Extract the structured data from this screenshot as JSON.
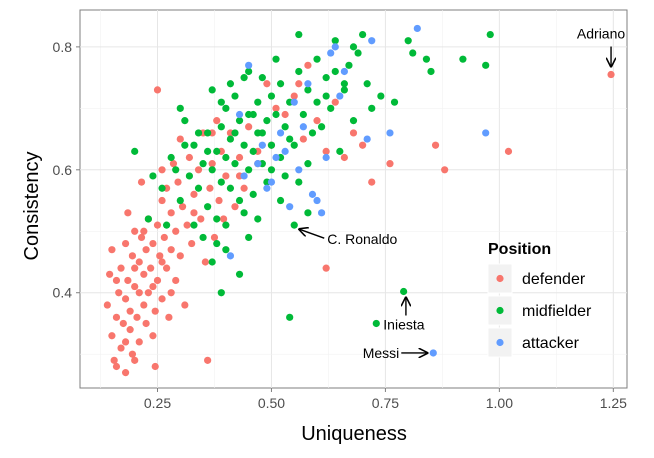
{
  "chart_data": {
    "type": "scatter",
    "title": "",
    "xlabel": "Uniqueness",
    "ylabel": "Consistency",
    "xlim": [
      0.08,
      1.28
    ],
    "ylim": [
      0.245,
      0.86
    ],
    "xticks": [
      0.25,
      0.5,
      0.75,
      1.0,
      1.25
    ],
    "xtick_labels": [
      "0.25",
      "0.50",
      "0.75",
      "1.00",
      "1.25"
    ],
    "yticks": [
      0.4,
      0.6,
      0.8
    ],
    "ytick_labels": [
      "0.4",
      "0.6",
      "0.8"
    ],
    "grid": true,
    "legend": {
      "title": "Position",
      "placement": "bottom-right",
      "entries": [
        {
          "label": "defender",
          "color": "#F8766D"
        },
        {
          "label": "midfielder",
          "color": "#00BA38"
        },
        {
          "label": "attacker",
          "color": "#619CFF"
        }
      ]
    },
    "annotations": [
      {
        "text": "Adriano",
        "target": [
          1.245,
          0.755
        ],
        "arrow": "down",
        "anchor": "above"
      },
      {
        "text": "C. Ronaldo",
        "target": [
          0.55,
          0.505
        ],
        "arrow": "left-up",
        "anchor": "right"
      },
      {
        "text": "Iniesta",
        "target": [
          0.795,
          0.402
        ],
        "arrow": "up",
        "anchor": "below"
      },
      {
        "text": "Messi",
        "target": [
          0.855,
          0.302
        ],
        "arrow": "right",
        "anchor": "left"
      }
    ],
    "series": [
      {
        "name": "defender",
        "color": "#F8766D",
        "points": [
          [
            0.14,
            0.38
          ],
          [
            0.145,
            0.43
          ],
          [
            0.15,
            0.47
          ],
          [
            0.15,
            0.33
          ],
          [
            0.155,
            0.29
          ],
          [
            0.16,
            0.36
          ],
          [
            0.16,
            0.28
          ],
          [
            0.165,
            0.4
          ],
          [
            0.17,
            0.31
          ],
          [
            0.17,
            0.44
          ],
          [
            0.175,
            0.35
          ],
          [
            0.18,
            0.27
          ],
          [
            0.18,
            0.39
          ],
          [
            0.185,
            0.42
          ],
          [
            0.185,
            0.53
          ],
          [
            0.19,
            0.37
          ],
          [
            0.19,
            0.34
          ],
          [
            0.195,
            0.46
          ],
          [
            0.195,
            0.3
          ],
          [
            0.2,
            0.41
          ],
          [
            0.2,
            0.5
          ],
          [
            0.205,
            0.36
          ],
          [
            0.21,
            0.45
          ],
          [
            0.21,
            0.32
          ],
          [
            0.215,
            0.58
          ],
          [
            0.215,
            0.49
          ],
          [
            0.22,
            0.38
          ],
          [
            0.22,
            0.43
          ],
          [
            0.225,
            0.47
          ],
          [
            0.225,
            0.35
          ],
          [
            0.23,
            0.52
          ],
          [
            0.23,
            0.4
          ],
          [
            0.235,
            0.44
          ],
          [
            0.24,
            0.48
          ],
          [
            0.24,
            0.33
          ],
          [
            0.245,
            0.28
          ],
          [
            0.245,
            0.37
          ],
          [
            0.25,
            0.51
          ],
          [
            0.25,
            0.42
          ],
          [
            0.255,
            0.46
          ],
          [
            0.26,
            0.55
          ],
          [
            0.26,
            0.39
          ],
          [
            0.265,
            0.49
          ],
          [
            0.27,
            0.44
          ],
          [
            0.27,
            0.57
          ],
          [
            0.275,
            0.36
          ],
          [
            0.28,
            0.53
          ],
          [
            0.28,
            0.47
          ],
          [
            0.285,
            0.61
          ],
          [
            0.29,
            0.5
          ],
          [
            0.29,
            0.42
          ],
          [
            0.295,
            0.58
          ],
          [
            0.3,
            0.46
          ],
          [
            0.3,
            0.65
          ],
          [
            0.305,
            0.54
          ],
          [
            0.31,
            0.38
          ],
          [
            0.315,
            0.51
          ],
          [
            0.32,
            0.62
          ],
          [
            0.325,
            0.48
          ],
          [
            0.33,
            0.56
          ],
          [
            0.34,
            0.6
          ],
          [
            0.345,
            0.52
          ],
          [
            0.35,
            0.66
          ],
          [
            0.355,
            0.45
          ],
          [
            0.36,
            0.29
          ],
          [
            0.365,
            0.57
          ],
          [
            0.37,
            0.61
          ],
          [
            0.375,
            0.49
          ],
          [
            0.38,
            0.68
          ],
          [
            0.385,
            0.55
          ],
          [
            0.39,
            0.63
          ],
          [
            0.395,
            0.52
          ],
          [
            0.4,
            0.59
          ],
          [
            0.41,
            0.66
          ],
          [
            0.42,
            0.54
          ],
          [
            0.43,
            0.62
          ],
          [
            0.44,
            0.57
          ],
          [
            0.45,
            0.67
          ],
          [
            0.47,
            0.63
          ],
          [
            0.49,
            0.74
          ],
          [
            0.51,
            0.7
          ],
          [
            0.53,
            0.69
          ],
          [
            0.55,
            0.72
          ],
          [
            0.56,
            0.74
          ],
          [
            0.58,
            0.77
          ],
          [
            0.6,
            0.68
          ],
          [
            0.62,
            0.44
          ],
          [
            0.64,
            0.71
          ],
          [
            0.66,
            0.62
          ],
          [
            0.68,
            0.66
          ],
          [
            0.72,
            0.58
          ],
          [
            0.76,
            0.61
          ],
          [
            0.86,
            0.64
          ],
          [
            0.88,
            0.6
          ],
          [
            1.02,
            0.63
          ],
          [
            1.245,
            0.755
          ],
          [
            0.16,
            0.42
          ],
          [
            0.18,
            0.48
          ],
          [
            0.2,
            0.44
          ],
          [
            0.21,
            0.4
          ],
          [
            0.22,
            0.5
          ],
          [
            0.24,
            0.41
          ],
          [
            0.26,
            0.45
          ],
          [
            0.28,
            0.4
          ],
          [
            0.18,
            0.32
          ],
          [
            0.2,
            0.29
          ],
          [
            0.25,
            0.73
          ],
          [
            0.26,
            0.6
          ],
          [
            0.33,
            0.53
          ],
          [
            0.37,
            0.66
          ],
          [
            0.43,
            0.59
          ],
          [
            0.47,
            0.61
          ],
          [
            0.5,
            0.64
          ],
          [
            0.57,
            0.65
          ],
          [
            0.62,
            0.63
          ],
          [
            0.7,
            0.64
          ]
        ]
      },
      {
        "name": "midfielder",
        "color": "#00BA38",
        "points": [
          [
            0.2,
            0.63
          ],
          [
            0.23,
            0.52
          ],
          [
            0.26,
            0.57
          ],
          [
            0.27,
            0.51
          ],
          [
            0.29,
            0.6
          ],
          [
            0.3,
            0.55
          ],
          [
            0.31,
            0.68
          ],
          [
            0.32,
            0.59
          ],
          [
            0.33,
            0.64
          ],
          [
            0.34,
            0.57
          ],
          [
            0.35,
            0.61
          ],
          [
            0.36,
            0.66
          ],
          [
            0.36,
            0.54
          ],
          [
            0.37,
            0.73
          ],
          [
            0.37,
            0.6
          ],
          [
            0.38,
            0.63
          ],
          [
            0.38,
            0.52
          ],
          [
            0.39,
            0.67
          ],
          [
            0.39,
            0.58
          ],
          [
            0.39,
            0.4
          ],
          [
            0.4,
            0.7
          ],
          [
            0.4,
            0.62
          ],
          [
            0.4,
            0.51
          ],
          [
            0.41,
            0.65
          ],
          [
            0.41,
            0.57
          ],
          [
            0.42,
            0.72
          ],
          [
            0.42,
            0.61
          ],
          [
            0.43,
            0.68
          ],
          [
            0.43,
            0.55
          ],
          [
            0.44,
            0.64
          ],
          [
            0.44,
            0.75
          ],
          [
            0.45,
            0.6
          ],
          [
            0.45,
            0.69
          ],
          [
            0.46,
            0.63
          ],
          [
            0.46,
            0.56
          ],
          [
            0.47,
            0.71
          ],
          [
            0.47,
            0.66
          ],
          [
            0.48,
            0.61
          ],
          [
            0.48,
            0.75
          ],
          [
            0.49,
            0.68
          ],
          [
            0.49,
            0.58
          ],
          [
            0.5,
            0.72
          ],
          [
            0.5,
            0.64
          ],
          [
            0.51,
            0.78
          ],
          [
            0.51,
            0.69
          ],
          [
            0.52,
            0.62
          ],
          [
            0.52,
            0.74
          ],
          [
            0.53,
            0.67
          ],
          [
            0.53,
            0.59
          ],
          [
            0.54,
            0.71
          ],
          [
            0.54,
            0.36
          ],
          [
            0.55,
            0.64
          ],
          [
            0.55,
            0.51
          ],
          [
            0.56,
            0.76
          ],
          [
            0.56,
            0.82
          ],
          [
            0.57,
            0.69
          ],
          [
            0.58,
            0.73
          ],
          [
            0.58,
            0.61
          ],
          [
            0.59,
            0.66
          ],
          [
            0.6,
            0.78
          ],
          [
            0.6,
            0.71
          ],
          [
            0.61,
            0.67
          ],
          [
            0.62,
            0.75
          ],
          [
            0.63,
            0.7
          ],
          [
            0.64,
            0.81
          ],
          [
            0.65,
            0.63
          ],
          [
            0.66,
            0.73
          ],
          [
            0.67,
            0.77
          ],
          [
            0.68,
            0.68
          ],
          [
            0.69,
            0.79
          ],
          [
            0.7,
            0.82
          ],
          [
            0.71,
            0.74
          ],
          [
            0.72,
            0.7
          ],
          [
            0.73,
            0.35
          ],
          [
            0.74,
            0.72
          ],
          [
            0.77,
            0.71
          ],
          [
            0.79,
            0.402
          ],
          [
            0.8,
            0.81
          ],
          [
            0.81,
            0.79
          ],
          [
            0.84,
            0.78
          ],
          [
            0.85,
            0.76
          ],
          [
            0.92,
            0.78
          ],
          [
            0.97,
            0.77
          ],
          [
            0.98,
            0.82
          ],
          [
            0.24,
            0.59
          ],
          [
            0.28,
            0.62
          ],
          [
            0.3,
            0.7
          ],
          [
            0.33,
            0.51
          ],
          [
            0.35,
            0.49
          ],
          [
            0.37,
            0.45
          ],
          [
            0.38,
            0.48
          ],
          [
            0.42,
            0.66
          ],
          [
            0.44,
            0.53
          ],
          [
            0.46,
            0.69
          ],
          [
            0.48,
            0.66
          ],
          [
            0.5,
            0.6
          ],
          [
            0.52,
            0.55
          ],
          [
            0.54,
            0.65
          ],
          [
            0.56,
            0.58
          ],
          [
            0.58,
            0.53
          ],
          [
            0.62,
            0.72
          ],
          [
            0.64,
            0.76
          ],
          [
            0.66,
            0.74
          ],
          [
            0.68,
            0.8
          ],
          [
            0.43,
            0.43
          ],
          [
            0.45,
            0.49
          ],
          [
            0.47,
            0.52
          ],
          [
            0.4,
            0.47
          ],
          [
            0.36,
            0.63
          ],
          [
            0.41,
            0.74
          ],
          [
            0.45,
            0.76
          ],
          [
            0.39,
            0.71
          ],
          [
            0.34,
            0.66
          ],
          [
            0.31,
            0.64
          ]
        ]
      },
      {
        "name": "attacker",
        "color": "#619CFF",
        "points": [
          [
            0.41,
            0.46
          ],
          [
            0.43,
            0.69
          ],
          [
            0.44,
            0.59
          ],
          [
            0.45,
            0.77
          ],
          [
            0.47,
            0.61
          ],
          [
            0.48,
            0.64
          ],
          [
            0.5,
            0.58
          ],
          [
            0.51,
            0.62
          ],
          [
            0.52,
            0.66
          ],
          [
            0.53,
            0.63
          ],
          [
            0.55,
            0.71
          ],
          [
            0.56,
            0.6
          ],
          [
            0.57,
            0.67
          ],
          [
            0.58,
            0.74
          ],
          [
            0.59,
            0.56
          ],
          [
            0.6,
            0.55
          ],
          [
            0.61,
            0.53
          ],
          [
            0.62,
            0.62
          ],
          [
            0.63,
            0.79
          ],
          [
            0.64,
            0.8
          ],
          [
            0.65,
            0.72
          ],
          [
            0.66,
            0.76
          ],
          [
            0.71,
            0.65
          ],
          [
            0.72,
            0.81
          ],
          [
            0.76,
            0.66
          ],
          [
            0.82,
            0.83
          ],
          [
            0.855,
            0.302
          ],
          [
            0.97,
            0.66
          ],
          [
            0.49,
            0.57
          ],
          [
            0.54,
            0.54
          ]
        ]
      }
    ]
  }
}
